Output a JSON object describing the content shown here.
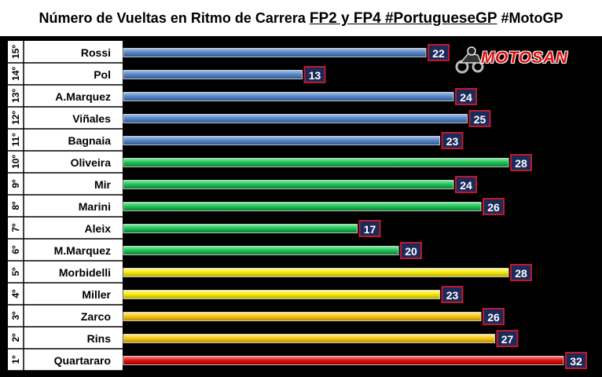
{
  "title": {
    "prefix": "Número de Vueltas en Ritmo de Carrera ",
    "highlight": "FP2 y FP4 #PortugueseGP",
    "suffix": "  #MotoGP"
  },
  "logo": {
    "text": "MOTOSAN",
    "icon": "motorbike-rider-icon"
  },
  "chart_data": {
    "type": "bar",
    "orientation": "horizontal",
    "categories": [
      "Rossi",
      "Pol",
      "A.Marquez",
      "Viñales",
      "Bagnaia",
      "Oliveira",
      "Mir",
      "Marini",
      "Aleix",
      "M.Marquez",
      "Morbidelli",
      "Miller",
      "Zarco",
      "Rins",
      "Quartararo"
    ],
    "positions": [
      "15º",
      "14º",
      "13º",
      "12º",
      "11º",
      "10º",
      "9º",
      "8º",
      "7º",
      "6º",
      "5º",
      "4º",
      "3º",
      "2º",
      "1º"
    ],
    "values": [
      22,
      13,
      24,
      25,
      23,
      28,
      24,
      26,
      17,
      20,
      28,
      23,
      26,
      27,
      32
    ],
    "colors": [
      "#5a8ac8",
      "#5a8ac8",
      "#5a8ac8",
      "#5a8ac8",
      "#5a8ac8",
      "#22c45a",
      "#22c45a",
      "#22c45a",
      "#22c45a",
      "#22c45a",
      "#f5ea10",
      "#f5ea10",
      "#f7c81a",
      "#f7c81a",
      "#e41414"
    ],
    "xlim": [
      0,
      32
    ],
    "title": "Número de Vueltas en Ritmo de Carrera FP2 y FP4 #PortugueseGP #MotoGP"
  }
}
